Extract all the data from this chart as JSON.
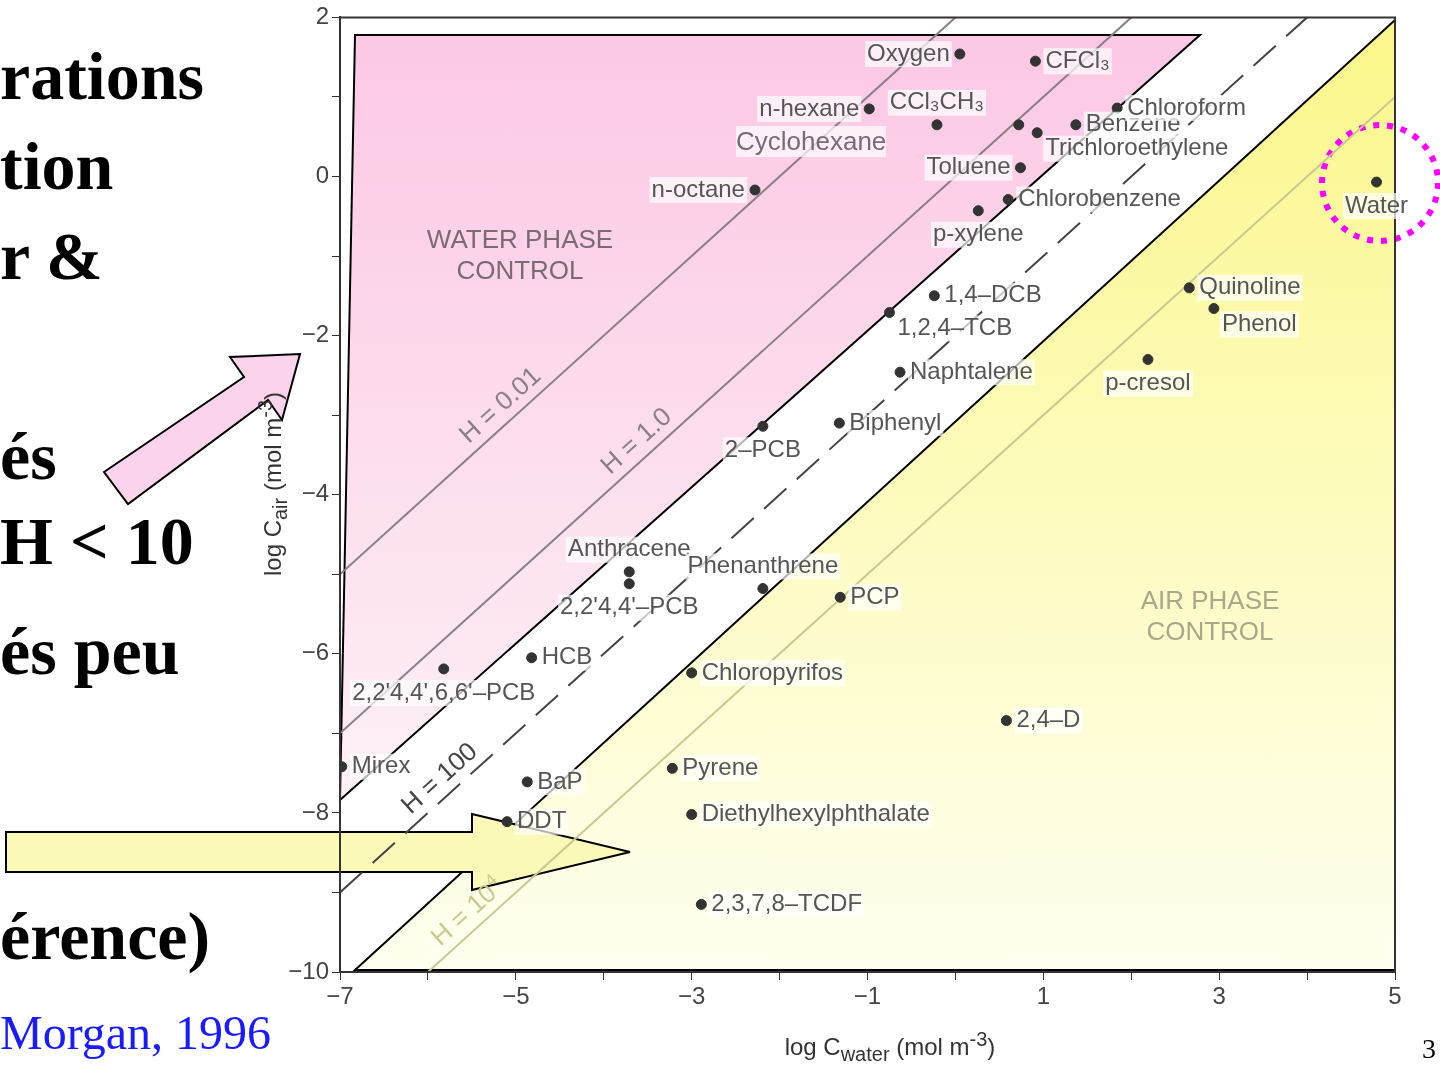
{
  "chart_data": {
    "type": "scatter",
    "xlabel": "log C$_{water}$ (mol m$^{-3}$)",
    "ylabel": "log C$_{air}$ (mol m$^{-3}$)",
    "xlim": [
      -7,
      5
    ],
    "xticks": [
      -7,
      {
        "value": -6,
        "label": null
      },
      -5,
      {
        "value": -4,
        "label": null
      },
      -3,
      {
        "value": -2,
        "label": null
      },
      -1,
      {
        "value": 0,
        "label": null
      },
      1,
      {
        "value": 2,
        "label": null
      },
      3,
      {
        "value": 4,
        "label": null
      },
      5
    ],
    "ylim": [
      -10,
      2
    ],
    "yticks": [
      -10,
      {
        "value": -9,
        "label": null
      },
      -8,
      {
        "value": -7,
        "label": null
      },
      -6,
      {
        "value": -5,
        "label": null
      },
      -4,
      {
        "value": -3,
        "label": null
      },
      -2,
      {
        "value": -1,
        "label": null
      },
      0,
      {
        "value": 1,
        "label": null
      },
      2
    ],
    "grid": false,
    "legend": false,
    "marker": "circle",
    "series": [
      {
        "type": "scatter",
        "color": "#333333",
        "x": [
          0.05,
          0.91,
          -0.98,
          -0.21,
          0.72,
          0.93,
          1.37,
          1.84,
          -2.28,
          0.74,
          0.6,
          0.26,
          -0.24,
          -0.75,
          -0.63,
          -1.32,
          -2.19,
          -3.71,
          -3.71,
          -2.19,
          -4.82,
          -5.82,
          -6.98,
          -4.87,
          -5.1,
          -1.31,
          -3.0,
          -3.22,
          -3.0,
          -2.89,
          0.58,
          2.66,
          2.94,
          2.19,
          4.79
        ],
        "values": [
          1.54,
          1.45,
          0.85,
          0.65,
          0.65,
          0.55,
          0.65,
          0.86,
          -0.17,
          0.11,
          -0.29,
          -0.43,
          -1.5,
          -1.71,
          -2.46,
          -3.1,
          -3.14,
          -4.97,
          -5.12,
          -5.18,
          -6.05,
          -6.19,
          -7.42,
          -7.61,
          -8.11,
          -5.29,
          -6.24,
          -7.44,
          -8.02,
          -9.15,
          -6.84,
          -1.4,
          -1.66,
          -2.3,
          -0.07
        ]
      },
      {
        "type": "line",
        "name": "H = 0.01",
        "color": "#8a7f86",
        "marker": "none",
        "x": [
          -7,
          0
        ],
        "values": [
          -5,
          2
        ]
      },
      {
        "type": "line",
        "name": "H = 1.0",
        "color": "#8a7f86",
        "marker": "none",
        "x": [
          -7,
          2
        ],
        "values": [
          -7,
          2
        ]
      },
      {
        "type": "line",
        "name": "H = 100",
        "color": "#444444",
        "marker": "none",
        "line_style": "dashed",
        "x": [
          -7,
          4
        ],
        "values": [
          -9,
          2
        ]
      },
      {
        "type": "line",
        "name": "H = 10$^{4}$",
        "color": "#c8c890",
        "marker": "none",
        "x": [
          -6,
          5
        ],
        "values": [
          -10,
          1
        ]
      }
    ],
    "annotations": [
      {
        "text": "Oxygen",
        "x": 0.05,
        "y": 1.54
      },
      {
        "text": "CFCl₃",
        "x": 0.91,
        "y": 1.45
      },
      {
        "text": "n-hexane",
        "x": -0.98,
        "y": 0.85
      },
      {
        "text": "CCl₃CH₃",
        "x": -0.21,
        "y": 0.65
      },
      {
        "text": "Trichloroethylene",
        "x": 0.93,
        "y": 0.55
      },
      {
        "text": "Benzene",
        "x": 1.37,
        "y": 0.65
      },
      {
        "text": "Chloroform",
        "x": 1.84,
        "y": 0.86
      },
      {
        "text": "n-octane",
        "x": -2.28,
        "y": -0.17
      },
      {
        "text": "Toluene",
        "x": 0.74,
        "y": 0.11
      },
      {
        "text": "Chlorobenzene",
        "x": 0.6,
        "y": -0.29
      },
      {
        "text": "p-xylene",
        "x": 0.26,
        "y": -0.43
      },
      {
        "text": "1,4–DCB",
        "x": -0.24,
        "y": -1.5
      },
      {
        "text": "1,2,4–TCB",
        "x": -0.75,
        "y": -1.71
      },
      {
        "text": "Naphtalene",
        "x": -0.63,
        "y": -2.46
      },
      {
        "text": "Biphenyl",
        "x": -1.32,
        "y": -3.1
      },
      {
        "text": "2–PCB",
        "x": -2.19,
        "y": -3.14
      },
      {
        "text": "Anthracene",
        "x": -3.71,
        "y": -4.97
      },
      {
        "text": "2,2'4,4'–PCB",
        "x": -3.71,
        "y": -5.12
      },
      {
        "text": "Phenanthrene",
        "x": -2.19,
        "y": -5.18
      },
      {
        "text": "HCB",
        "x": -4.82,
        "y": -6.05
      },
      {
        "text": "2,2'4,4',6,6'–PCB",
        "x": -5.82,
        "y": -6.19
      },
      {
        "text": "Mirex",
        "x": -6.98,
        "y": -7.42
      },
      {
        "text": "BaP",
        "x": -4.87,
        "y": -7.61
      },
      {
        "text": "DDT",
        "x": -5.1,
        "y": -8.11
      },
      {
        "text": "PCP",
        "x": -1.31,
        "y": -5.29
      },
      {
        "text": "Chloropyrifos",
        "x": -3.0,
        "y": -6.24
      },
      {
        "text": "Pyrene",
        "x": -3.22,
        "y": -7.44
      },
      {
        "text": "Diethylhexylphthalate",
        "x": -3.0,
        "y": -8.02
      },
      {
        "text": "2,3,7,8–TCDF",
        "x": -2.89,
        "y": -9.15
      },
      {
        "text": "2,4–D",
        "x": 0.58,
        "y": -6.84
      },
      {
        "text": "Quinoline",
        "x": 2.66,
        "y": -1.4
      },
      {
        "text": "Phenol",
        "x": 2.94,
        "y": -1.66
      },
      {
        "text": "p-cresol",
        "x": 2.19,
        "y": -2.3
      },
      {
        "text": "Water",
        "x": 4.79,
        "y": -0.07
      },
      "Cyclohexane",
      "WATER PHASE CONTROL",
      "AIR PHASE CONTROL",
      "rations",
      "tion",
      "r &",
      "és",
      "H < 10",
      "és peu",
      "érence)",
      "Morgan, 1996",
      "3"
    ]
  }
}
